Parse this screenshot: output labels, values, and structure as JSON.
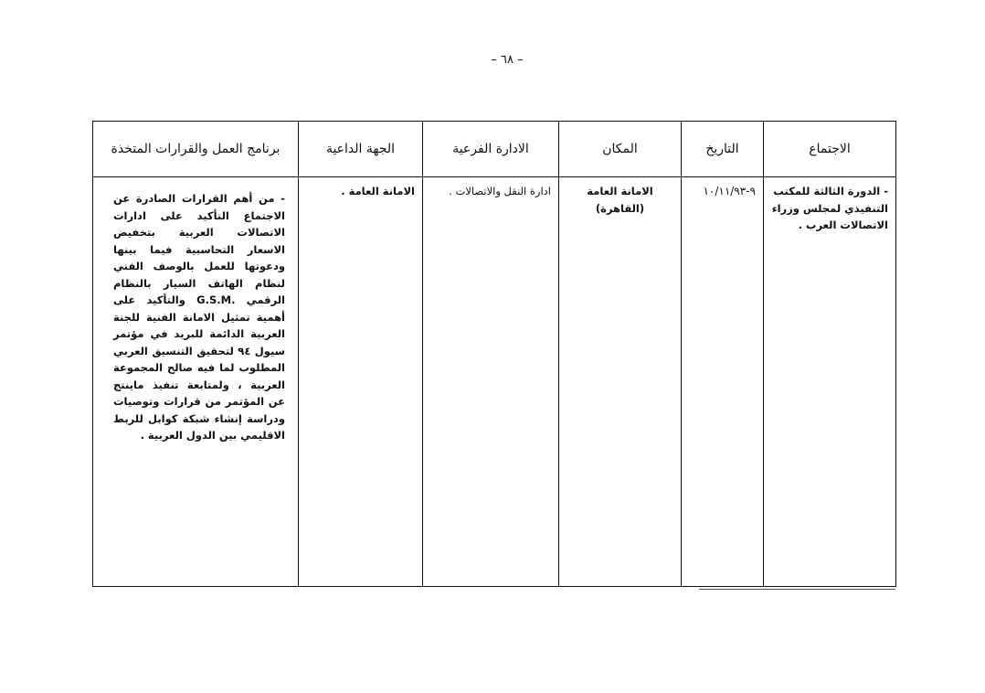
{
  "page_number": "– ٦٨ –",
  "table": {
    "headers": [
      "الاجتماع",
      "التاريخ",
      "المكان",
      "الادارة الفرعية",
      "الجهة الداعية",
      "برنامج العمل والقرارات المتخذة"
    ],
    "rows": [
      {
        "meeting": "- الدورة الثالثة للمكتب التنفيذي لمجلس وزراء الاتصالات العرب .",
        "date": "٩-١٠/١١/٩٣",
        "place": "الامانة العامة (القاهرة)",
        "sub_department": "ادارة النقل والاتصالات .",
        "inviting_party": "الامانة العامة .",
        "program": "- من أهم القرارات الصادرة عن الاجتماع التأكيد على ادارات الاتصالات العربية بتخفيض الاسعار التحاسبية فيما بينها ودعوتها للعمل بالوصف الفني لنظام الهاتف السيار بالنظام الرقمي .G.S.M والتأكيد على أهمية تمثيل الامانة الفنية للجنة العربية الدائمة للبريد في مؤتمر سيول ٩٤ لتحقيق التنسيق العربي المطلوب لما فيه صالح المجموعة العربية ، ولمتابعة تنفيذ ماينتج عن المؤتمر من قرارات وتوصيات ودراسة إنشاء شبكة كوابل للربط الاقليمي بين الدول العربية ."
      }
    ]
  }
}
